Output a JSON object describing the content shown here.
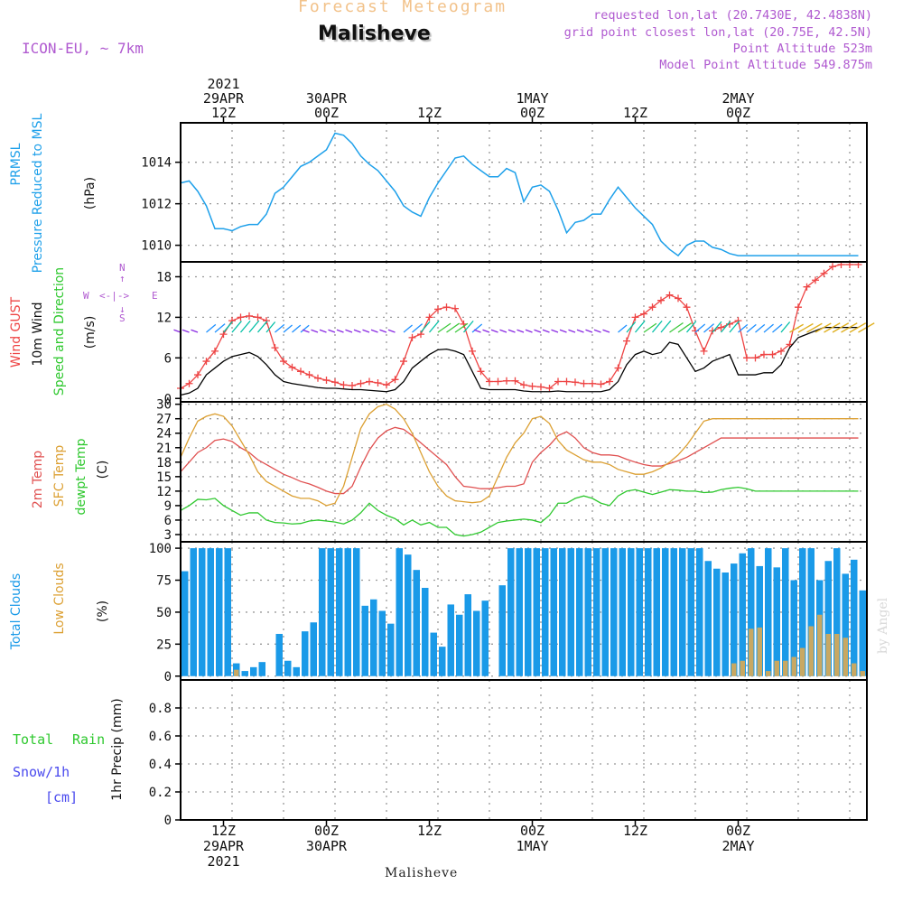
{
  "header": {
    "banner": "Forecast Meteogram",
    "station": "Malisheve",
    "model": "ICON-EU, ~ 7km",
    "requested": "requested lon,lat (20.7430E, 42.4838N)",
    "closest": "grid point closest lon,lat (20.75E, 42.5N)",
    "altitude": "Point Altitude 523m",
    "model_altitude": "Model Point Altitude 549.875m"
  },
  "footer": {
    "station": "Malisheve",
    "watermark": "by Angel"
  },
  "colors": {
    "pressure": "#1ea0ea",
    "gust": "#ee4444",
    "wind": "#000000",
    "temp2m": "#e05050",
    "sfctemp": "#dca033",
    "dewpt": "#2ec82e",
    "total_clouds": "#1a9ae8",
    "low_clouds": "#c8a862",
    "title_purple": "#b05ad0",
    "grid": "#999999"
  },
  "time_axis": {
    "top_labels": [
      {
        "t": 12,
        "lines": [
          "2021",
          "29APR",
          "12Z"
        ]
      },
      {
        "t": 24,
        "lines": [
          "30APR",
          "00Z"
        ]
      },
      {
        "t": 36,
        "lines": [
          "12Z"
        ]
      },
      {
        "t": 48,
        "lines": [
          "1MAY",
          "00Z"
        ]
      },
      {
        "t": 60,
        "lines": [
          "12Z"
        ]
      },
      {
        "t": 72,
        "lines": [
          "2MAY",
          "00Z"
        ]
      }
    ],
    "bottom_labels": [
      {
        "t": 12,
        "lines": [
          "12Z",
          "29APR",
          "2021"
        ]
      },
      {
        "t": 24,
        "lines": [
          "00Z",
          "30APR"
        ]
      },
      {
        "t": 36,
        "lines": [
          "12Z"
        ]
      },
      {
        "t": 48,
        "lines": [
          "00Z",
          "1MAY"
        ]
      },
      {
        "t": 60,
        "lines": [
          "12Z"
        ]
      },
      {
        "t": 72,
        "lines": [
          "00Z",
          "2MAY"
        ]
      }
    ]
  },
  "panels": {
    "pressure": {
      "label1": "PRMSL",
      "label2": "Pressure Reduced to MSL",
      "unit": "(hPa)"
    },
    "wind": {
      "label_gust": "Wind GUST",
      "label_wind": "10m Wind",
      "label_dir": "Speed and Direction",
      "unit": "(m/s)",
      "compass_n": "N",
      "compass_s": "S",
      "compass_w": "W",
      "compass_e": "E"
    },
    "temp": {
      "label_2m": "2m Temp",
      "label_sfc": "SFC Temp",
      "label_dew": "dewpt Temp",
      "unit": "(C)"
    },
    "clouds": {
      "label_total": "Total Clouds",
      "label_low": "Low Clouds",
      "unit": "(%)"
    },
    "precip": {
      "label_total": "Total",
      "label_rain": "Rain",
      "label_snow": "Snow/1h",
      "label_cm": "[cm]",
      "unit": "1hr Precip (mm)"
    }
  },
  "chart_data": [
    {
      "type": "line",
      "ylabel": "(hPa)",
      "x_hours_start": "2021-04-29 07Z",
      "ylim": [
        1009.2,
        1015.9
      ],
      "yticks": [
        1010,
        1012,
        1014
      ],
      "series": [
        {
          "name": "PRMSL",
          "x": [
            0,
            1,
            2,
            3,
            4,
            5,
            6,
            7,
            8,
            9,
            10,
            11,
            12,
            13,
            14,
            15,
            16,
            17,
            18,
            19,
            20,
            21,
            22,
            23,
            24,
            25,
            26,
            27,
            28,
            29,
            30,
            31,
            32,
            33,
            34,
            35,
            36,
            37,
            38,
            39,
            40,
            41,
            42,
            43,
            44,
            45,
            46,
            47,
            48,
            49,
            50,
            51,
            52,
            53,
            54,
            55,
            56,
            57,
            58,
            59,
            60,
            61,
            62,
            63,
            64,
            65,
            66,
            67,
            68,
            69,
            70,
            71,
            72,
            73,
            74,
            75,
            76,
            77,
            78,
            79
          ],
          "values": [
            1013.0,
            1013.1,
            1012.6,
            1011.9,
            1010.8,
            1010.8,
            1010.7,
            1010.9,
            1011.0,
            1011.0,
            1011.5,
            1012.5,
            1012.8,
            1013.3,
            1013.8,
            1014.0,
            1014.3,
            1014.6,
            1015.4,
            1015.3,
            1014.9,
            1014.3,
            1013.9,
            1013.6,
            1013.1,
            1012.6,
            1011.9,
            1011.6,
            1011.4,
            1012.3,
            1013.0,
            1013.6,
            1014.2,
            1014.3,
            1013.9,
            1013.6,
            1013.3,
            1013.3,
            1013.7,
            1013.5,
            1012.1,
            1012.8,
            1012.9,
            1012.6,
            1011.7,
            1010.6,
            1011.1,
            1011.2,
            1011.5,
            1011.5,
            1012.2,
            1012.8,
            1012.3,
            1011.8,
            1011.4,
            1011.0,
            1010.2,
            1009.8,
            1009.5,
            1010.0,
            1010.2,
            1010.2,
            1009.9,
            1009.8,
            1009.6,
            1009.5,
            1009.5,
            1009.5,
            1009.5,
            1009.5,
            1009.5,
            1009.5,
            1009.5,
            1009.5,
            1009.5,
            1009.5,
            1009.5,
            1009.5,
            1009.5,
            1009.5
          ]
        }
      ]
    },
    {
      "type": "line",
      "ylabel": "(m/s)",
      "ylim": [
        -0.5,
        20.2
      ],
      "yticks": [
        0,
        6,
        12,
        18
      ],
      "series": [
        {
          "name": "Wind GUST",
          "values": [
            1.5,
            2.2,
            3.5,
            5.5,
            7.0,
            9.5,
            11.5,
            12.0,
            12.2,
            12.0,
            11.5,
            7.5,
            5.5,
            4.6,
            4.0,
            3.5,
            3.0,
            2.7,
            2.4,
            2.0,
            1.9,
            2.2,
            2.5,
            2.3,
            2.0,
            2.8,
            5.5,
            9.0,
            9.5,
            12.0,
            13.2,
            13.5,
            13.3,
            11.0,
            7.0,
            4.0,
            2.5,
            2.5,
            2.6,
            2.6,
            2.0,
            1.8,
            1.7,
            1.5,
            2.5,
            2.5,
            2.4,
            2.2,
            2.2,
            2.1,
            2.5,
            4.5,
            8.5,
            12.0,
            12.5,
            13.5,
            14.5,
            15.3,
            14.8,
            13.5,
            10.0,
            7.0,
            10.0,
            10.5,
            11.0,
            11.5,
            6.0,
            6.0,
            6.5,
            6.5,
            7.0,
            8.0,
            13.5,
            16.5,
            17.5,
            18.5,
            19.5,
            19.8,
            19.8,
            19.8
          ]
        },
        {
          "name": "10m Wind",
          "values": [
            0.5,
            0.8,
            1.5,
            3.5,
            4.5,
            5.5,
            6.2,
            6.5,
            6.8,
            6.2,
            5.0,
            3.5,
            2.5,
            2.2,
            2.0,
            1.8,
            1.6,
            1.5,
            1.5,
            1.4,
            1.3,
            1.3,
            1.2,
            1.1,
            1.0,
            1.3,
            2.5,
            4.5,
            5.5,
            6.5,
            7.2,
            7.3,
            7.0,
            6.5,
            4.0,
            1.5,
            1.3,
            1.3,
            1.3,
            1.3,
            1.1,
            1.0,
            1.0,
            1.0,
            1.1,
            1.0,
            1.0,
            1.0,
            1.0,
            1.0,
            1.3,
            2.5,
            5.0,
            6.5,
            7.0,
            6.5,
            6.8,
            8.3,
            8.0,
            6.0,
            4.0,
            4.5,
            5.5,
            6.0,
            6.5,
            3.5,
            3.5,
            3.5,
            3.8,
            3.8,
            5.0,
            7.5,
            9.0,
            9.5,
            10.0,
            10.5,
            10.5,
            10.5,
            10.5,
            10.5
          ]
        }
      ]
    },
    {
      "type": "line",
      "ylabel": "(C)",
      "ylim": [
        1.5,
        30.5
      ],
      "yticks": [
        3,
        6,
        9,
        12,
        15,
        18,
        21,
        24,
        27,
        30
      ],
      "series": [
        {
          "name": "2m Temp",
          "values": [
            16.0,
            18.0,
            20.0,
            21.0,
            22.5,
            22.8,
            22.3,
            21.0,
            20.0,
            18.5,
            17.5,
            16.5,
            15.5,
            14.8,
            14.0,
            13.5,
            12.8,
            12.0,
            11.5,
            11.5,
            13.0,
            17.0,
            20.5,
            23.0,
            24.5,
            25.2,
            24.8,
            23.5,
            22.0,
            20.5,
            19.0,
            17.5,
            15.0,
            13.0,
            12.8,
            12.5,
            12.5,
            12.7,
            13.0,
            13.0,
            13.5,
            18.0,
            20.0,
            21.5,
            23.5,
            24.3,
            23.0,
            21.0,
            20.0,
            19.5,
            19.5,
            19.3,
            18.6,
            18.0,
            17.5,
            17.2,
            17.2,
            17.7,
            18.3,
            19.0,
            20.0,
            21.0,
            22.0,
            23.0,
            23.0,
            23.0,
            23.0,
            23.0,
            23.0,
            23.0,
            23.0,
            23.0,
            23.0,
            23.0,
            23.0,
            23.0,
            23.0,
            23.0,
            23.0,
            23.0
          ]
        },
        {
          "name": "SFC Temp",
          "values": [
            19.0,
            23.0,
            26.5,
            27.5,
            28.0,
            27.5,
            25.5,
            22.5,
            19.5,
            16.0,
            14.0,
            13.0,
            12.0,
            11.0,
            10.5,
            10.5,
            10.0,
            9.0,
            9.5,
            13.0,
            19.0,
            25.0,
            28.0,
            29.5,
            30.0,
            29.0,
            27.0,
            24.0,
            20.0,
            16.0,
            13.0,
            11.0,
            10.0,
            9.8,
            9.6,
            9.8,
            11.0,
            15.0,
            19.0,
            22.0,
            24.0,
            27.0,
            27.5,
            26.0,
            22.5,
            20.5,
            19.5,
            18.5,
            18.0,
            18.0,
            17.5,
            16.5,
            16.0,
            15.5,
            15.5,
            16.0,
            16.8,
            18.0,
            19.5,
            21.5,
            24.0,
            26.5,
            27.0,
            27.0,
            27.0,
            27.0,
            27.0,
            27.0,
            27.0,
            27.0,
            27.0,
            27.0,
            27.0,
            27.0,
            27.0,
            27.0,
            27.0,
            27.0,
            27.0,
            27.0
          ]
        },
        {
          "name": "dewpt Temp",
          "values": [
            8.0,
            9.0,
            10.3,
            10.2,
            10.5,
            9.0,
            8.0,
            7.0,
            7.5,
            7.5,
            6.0,
            5.5,
            5.4,
            5.2,
            5.3,
            5.8,
            6.0,
            5.8,
            5.6,
            5.2,
            6.0,
            7.5,
            9.5,
            8.0,
            7.0,
            6.3,
            5.0,
            6.0,
            5.0,
            5.5,
            4.5,
            4.5,
            3.0,
            2.7,
            3.0,
            3.5,
            4.5,
            5.5,
            5.8,
            6.0,
            6.2,
            6.0,
            5.5,
            7.0,
            9.5,
            9.5,
            10.5,
            11.0,
            10.5,
            9.5,
            9.0,
            11.0,
            12.0,
            12.3,
            11.8,
            11.3,
            11.8,
            12.3,
            12.2,
            12.0,
            12.0,
            11.7,
            11.8,
            12.3,
            12.6,
            12.8,
            12.5,
            12.0,
            12.0,
            12.0,
            12.0,
            12.0,
            12.0,
            12.0,
            12.0,
            12.0,
            12.0,
            12.0,
            12.0,
            12.0
          ]
        }
      ]
    },
    {
      "type": "bar",
      "ylabel": "(%)",
      "ylim": [
        -3,
        105
      ],
      "yticks": [
        0,
        25,
        50,
        75,
        100
      ],
      "series": [
        {
          "name": "Total Clouds",
          "values": [
            82,
            100,
            100,
            100,
            100,
            100,
            10,
            4,
            7,
            11,
            0,
            33,
            12,
            7,
            35,
            42,
            100,
            100,
            100,
            100,
            100,
            55,
            60,
            51,
            41,
            100,
            95,
            83,
            69,
            34,
            23,
            56,
            48,
            64,
            51,
            59,
            0,
            71,
            100,
            100,
            100,
            100,
            100,
            100,
            100,
            100,
            100,
            100,
            100,
            100,
            100,
            100,
            100,
            100,
            100,
            100,
            100,
            100,
            100,
            100,
            100,
            90,
            84,
            81,
            88,
            96,
            100,
            86,
            100,
            85,
            100,
            75,
            100,
            100,
            75,
            90,
            100,
            80,
            91,
            67
          ]
        },
        {
          "name": "Low Clouds",
          "values": [
            0,
            0,
            0,
            0,
            0,
            0,
            5,
            0,
            0,
            0,
            0,
            0,
            0,
            0,
            0,
            0,
            0,
            0,
            0,
            0,
            0,
            0,
            0,
            0,
            0,
            0,
            0,
            0,
            0,
            0,
            0,
            0,
            0,
            0,
            0,
            0,
            0,
            0,
            0,
            0,
            0,
            0,
            0,
            0,
            0,
            0,
            0,
            0,
            0,
            0,
            0,
            0,
            0,
            0,
            0,
            0,
            0,
            0,
            0,
            0,
            0,
            0,
            0,
            0,
            10,
            12,
            37,
            38,
            4,
            12,
            12,
            15,
            22,
            39,
            48,
            33,
            33,
            30,
            10,
            4
          ]
        }
      ]
    },
    {
      "type": "bar",
      "ylabel": "1hr Precip (mm)",
      "ylim": [
        0,
        1.0
      ],
      "yticks": [
        0,
        0.2,
        0.4,
        0.6,
        0.8
      ],
      "series": [
        {
          "name": "Total Rain",
          "values": []
        },
        {
          "name": "Snow/1h",
          "values": []
        }
      ]
    }
  ]
}
